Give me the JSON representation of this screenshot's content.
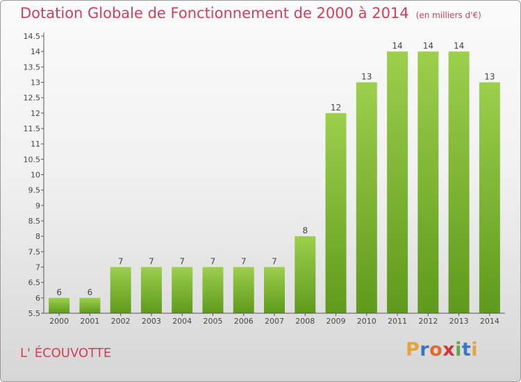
{
  "title": "Dotation Globale de Fonctionnement de 2000 à 2014",
  "unit": "(en milliers d'€)",
  "commune": "L' ÉCOUVOTTE",
  "logo": {
    "letters": [
      "P",
      "r",
      "o",
      "x",
      "i",
      "t",
      "i"
    ]
  },
  "colors": {
    "title": "#d03e5a",
    "bar_top": "#9ccf4c",
    "bar_bottom": "#5f9a1c"
  },
  "chart_data": {
    "type": "bar",
    "title": "Dotation Globale de Fonctionnement de 2000 à 2014",
    "subtitle": "(en milliers d'€)",
    "categories": [
      "2000",
      "2001",
      "2002",
      "2003",
      "2004",
      "2005",
      "2006",
      "2007",
      "2008",
      "2009",
      "2010",
      "2011",
      "2012",
      "2013",
      "2014"
    ],
    "values": [
      6,
      6,
      7,
      7,
      7,
      7,
      7,
      7,
      8,
      12,
      13,
      14,
      14,
      14,
      13
    ],
    "yticks": [
      "5.5",
      "6",
      "6.5",
      "7",
      "7.5",
      "8",
      "8.5",
      "9",
      "9.5",
      "10",
      "10.5",
      "11",
      "11.5",
      "12",
      "12.5",
      "13",
      "13.5",
      "14",
      "14.5"
    ],
    "ylim": [
      5.5,
      14.5
    ],
    "grid": false
  }
}
